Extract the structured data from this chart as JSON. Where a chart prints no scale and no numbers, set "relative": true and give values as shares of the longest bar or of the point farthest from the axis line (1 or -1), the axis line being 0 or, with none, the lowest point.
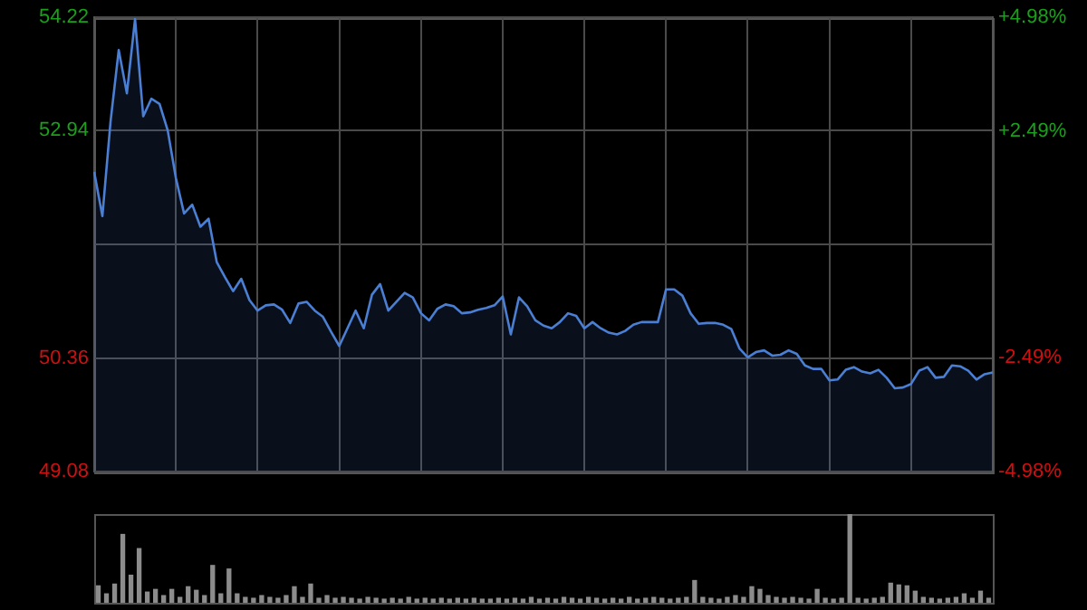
{
  "chart_data": [
    {
      "type": "area",
      "categories": [
        null,
        null,
        null,
        null,
        null,
        null,
        null,
        null,
        null,
        null,
        null,
        null,
        null,
        null,
        null,
        null,
        null,
        null,
        null,
        null,
        null,
        null,
        null,
        null,
        null,
        null,
        null,
        null,
        null,
        null,
        null,
        null,
        null,
        null,
        null,
        null,
        null,
        null,
        null,
        null,
        null,
        null,
        null,
        null,
        null,
        null,
        null,
        null,
        null,
        null,
        null,
        null,
        null,
        null,
        null,
        null,
        null,
        null,
        null,
        null,
        null,
        null,
        null,
        null,
        null,
        null,
        null,
        null,
        null,
        null,
        null,
        null,
        null,
        null,
        null,
        null,
        null,
        null,
        null,
        null,
        null,
        null,
        null,
        null,
        null,
        null,
        null,
        null,
        null,
        null,
        null,
        null,
        null,
        null,
        null,
        null,
        null,
        null,
        null,
        null,
        null,
        null,
        null,
        null,
        null,
        null,
        null,
        null,
        null,
        null,
        null
      ],
      "values": [
        52.47,
        51.97,
        53.04,
        53.85,
        53.36,
        54.2,
        53.1,
        53.3,
        53.24,
        52.94,
        52.4,
        52.0,
        52.1,
        51.85,
        51.94,
        51.45,
        51.28,
        51.12,
        51.26,
        51.02,
        50.9,
        50.96,
        50.97,
        50.91,
        50.76,
        50.98,
        51.0,
        50.9,
        50.83,
        50.66,
        50.5,
        50.7,
        50.9,
        50.7,
        51.08,
        51.2,
        50.9,
        51.0,
        51.1,
        51.05,
        50.87,
        50.79,
        50.92,
        50.97,
        50.95,
        50.87,
        50.88,
        50.91,
        50.93,
        50.96,
        51.06,
        50.63,
        51.05,
        50.95,
        50.79,
        50.73,
        50.7,
        50.77,
        50.87,
        50.84,
        50.7,
        50.77,
        50.7,
        50.65,
        50.63,
        50.67,
        50.74,
        50.77,
        50.77,
        50.77,
        51.14,
        51.14,
        51.07,
        50.87,
        50.75,
        50.76,
        50.76,
        50.74,
        50.69,
        50.47,
        50.37,
        50.43,
        50.45,
        50.39,
        50.4,
        50.45,
        50.41,
        50.28,
        50.24,
        50.24,
        50.11,
        50.12,
        50.23,
        50.26,
        50.21,
        50.19,
        50.23,
        50.14,
        50.02,
        50.03,
        50.07,
        50.22,
        50.26,
        50.14,
        50.15,
        50.28,
        50.27,
        50.22,
        50.12,
        50.18,
        50.2
      ],
      "color": "#4a7fd4",
      "ylim": [
        49.08,
        54.22
      ],
      "yticks": [
        49.08,
        50.36,
        {
          "value": 51.65,
          "label": null
        },
        52.94,
        54.22
      ],
      "y2lim": [
        -4.98,
        4.98
      ],
      "y2ticks": [
        {
          "value": -4.98,
          "label": "-4.98%"
        },
        {
          "value": -2.49,
          "label": "-2.49%"
        },
        {
          "value": 0,
          "label": null
        },
        {
          "value": 2.49,
          "label": "+2.49%"
        },
        {
          "value": 4.98,
          "label": "+4.98%"
        }
      ],
      "grid": true,
      "tick_labels": "y"
    },
    {
      "type": "bar",
      "relative": true,
      "color": "#8c8c8c",
      "categories": [
        null,
        null,
        null,
        null,
        null,
        null,
        null,
        null,
        null,
        null,
        null,
        null,
        null,
        null,
        null,
        null,
        null,
        null,
        null,
        null,
        null,
        null,
        null,
        null,
        null,
        null,
        null,
        null,
        null,
        null,
        null,
        null,
        null,
        null,
        null,
        null,
        null,
        null,
        null,
        null,
        null,
        null,
        null,
        null,
        null,
        null,
        null,
        null,
        null,
        null,
        null,
        null,
        null,
        null,
        null,
        null,
        null,
        null,
        null,
        null,
        null,
        null,
        null,
        null,
        null,
        null,
        null,
        null,
        null,
        null,
        null,
        null,
        null,
        null,
        null,
        null,
        null,
        null,
        null,
        null,
        null,
        null,
        null,
        null,
        null,
        null,
        null,
        null,
        null,
        null,
        null,
        null,
        null,
        null,
        null,
        null,
        null,
        null,
        null,
        null,
        null,
        null,
        null,
        null,
        null,
        null,
        null,
        null,
        null,
        null
      ],
      "values": [
        0.19,
        0.1,
        0.21,
        0.77,
        0.31,
        0.61,
        0.12,
        0.15,
        0.08,
        0.15,
        0.06,
        0.18,
        0.14,
        0.08,
        0.42,
        0.1,
        0.38,
        0.1,
        0.06,
        0.05,
        0.08,
        0.06,
        0.05,
        0.08,
        0.18,
        0.06,
        0.21,
        0.05,
        0.08,
        0.05,
        0.06,
        0.05,
        0.04,
        0.06,
        0.05,
        0.04,
        0.05,
        0.04,
        0.06,
        0.04,
        0.05,
        0.04,
        0.05,
        0.04,
        0.05,
        0.04,
        0.05,
        0.04,
        0.04,
        0.05,
        0.04,
        0.05,
        0.04,
        0.06,
        0.04,
        0.05,
        0.04,
        0.06,
        0.05,
        0.04,
        0.06,
        0.05,
        0.04,
        0.05,
        0.04,
        0.06,
        0.04,
        0.05,
        0.06,
        0.05,
        0.04,
        0.05,
        0.06,
        0.25,
        0.06,
        0.05,
        0.04,
        0.06,
        0.08,
        0.06,
        0.18,
        0.15,
        0.08,
        0.06,
        0.05,
        0.06,
        0.05,
        0.04,
        0.15,
        0.05,
        0.04,
        0.05,
        1,
        0.05,
        0.04,
        0.05,
        0.06,
        0.22,
        0.2,
        0.19,
        0.13,
        0.06,
        0.05,
        0.04,
        0.05,
        0.06,
        0.1,
        0.05,
        0.13,
        0.05
      ]
    }
  ]
}
